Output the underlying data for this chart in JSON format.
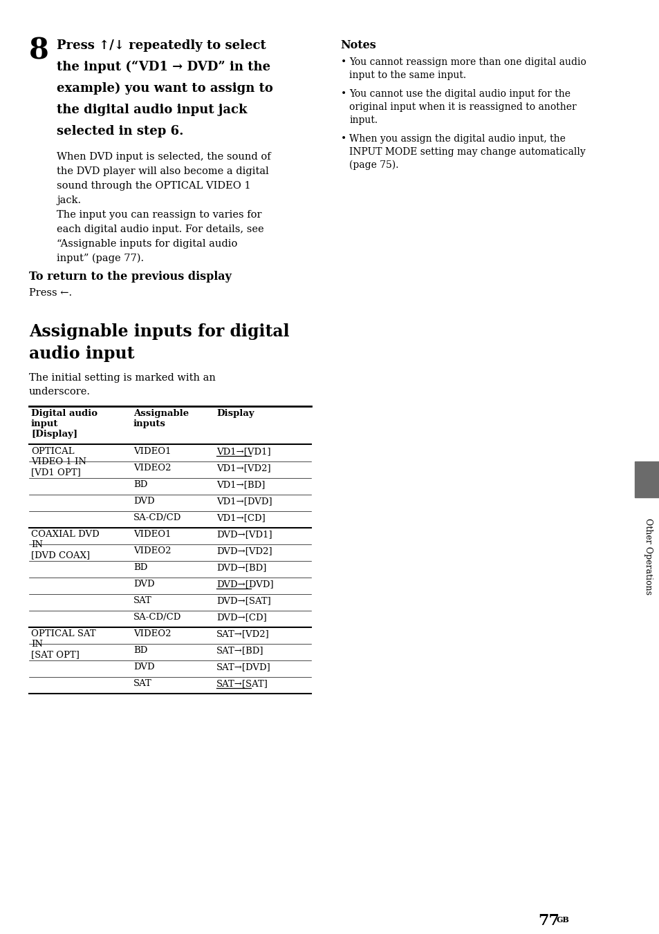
{
  "bg_color": "#ffffff",
  "page_number": "77",
  "superscript": "GB",
  "step_number": "8",
  "step_bold_lines": [
    "Press ↑/↓ repeatedly to select",
    "the input (“VD1 → DVD” in the",
    "example) you want to assign to",
    "the digital audio input jack",
    "selected in step 6."
  ],
  "step_normal_lines": [
    "When DVD input is selected, the sound of",
    "the DVD player will also become a digital",
    "sound through the OPTICAL VIDEO 1",
    "jack.",
    "The input you can reassign to varies for",
    "each digital audio input. For details, see",
    "“Assignable inputs for digital audio",
    "input” (page 77)."
  ],
  "notes_title": "Notes",
  "notes_bullets": [
    [
      "You cannot reassign more than one digital audio",
      "input to the same input."
    ],
    [
      "You cannot use the digital audio input for the",
      "original input when it is reassigned to another",
      "input."
    ],
    [
      "When you assign the digital audio input, the",
      "INPUT MODE setting may change automatically",
      "(page 75)."
    ]
  ],
  "return_heading": "To return to the previous display",
  "return_body": "Press ←.",
  "section_heading_line1": "Assignable inputs for digital",
  "section_heading_line2": "audio input",
  "section_intro_line1": "The initial setting is marked with an",
  "section_intro_line2": "underscore.",
  "table_headers": [
    "Digital audio\ninput\n[Display]",
    "Assignable\ninputs",
    "Display"
  ],
  "table_col0_groups": [
    {
      "text": "OPTICAL\nVIDEO 1 IN\n[VD1 OPT]",
      "num_rows": 5
    },
    {
      "text": "COAXIAL DVD\nIN\n[DVD COAX]",
      "num_rows": 6
    },
    {
      "text": "OPTICAL SAT\nIN\n[SAT OPT]",
      "num_rows": 4
    }
  ],
  "table_rows": [
    [
      "VIDEO1",
      "VD1→[VD1]",
      true
    ],
    [
      "VIDEO2",
      "VD1→[VD2]",
      false
    ],
    [
      "BD",
      "VD1→[BD]",
      false
    ],
    [
      "DVD",
      "VD1→[DVD]",
      false
    ],
    [
      "SA-CD/CD",
      "VD1→[CD]",
      false
    ],
    [
      "VIDEO1",
      "DVD→[VD1]",
      false
    ],
    [
      "VIDEO2",
      "DVD→[VD2]",
      false
    ],
    [
      "BD",
      "DVD→[BD]",
      false
    ],
    [
      "DVD",
      "DVD→[DVD]",
      true
    ],
    [
      "SAT",
      "DVD→[SAT]",
      false
    ],
    [
      "SA-CD/CD",
      "DVD→[CD]",
      false
    ],
    [
      "VIDEO2",
      "SAT→[VD2]",
      false
    ],
    [
      "BD",
      "SAT→[BD]",
      false
    ],
    [
      "DVD",
      "SAT→[DVD]",
      false
    ],
    [
      "SAT",
      "SAT→[SAT]",
      true
    ]
  ],
  "group_boundary_rows": [
    5,
    11
  ],
  "sidebar_color": "#6b6b6b",
  "sidebar_text": "Other Operations"
}
